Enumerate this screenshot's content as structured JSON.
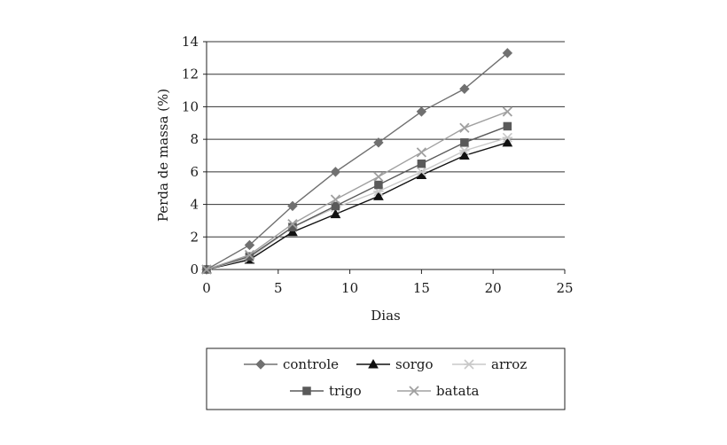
{
  "chart_data": {
    "type": "line",
    "title": "",
    "xlabel": "Dias",
    "ylabel": "Perda de massa (%)",
    "xlim": [
      0,
      25
    ],
    "ylim": [
      0,
      14
    ],
    "xticks": [
      0,
      5,
      10,
      15,
      20,
      25
    ],
    "yticks": [
      0,
      2,
      4,
      6,
      8,
      10,
      12,
      14
    ],
    "grid": "horizontal",
    "legend_position": "bottom",
    "series": [
      {
        "name": "controle",
        "marker": "diamond",
        "color": "#707070",
        "x": [
          0,
          3,
          6,
          9,
          12,
          15,
          18,
          21
        ],
        "y": [
          0,
          1.5,
          3.9,
          6.0,
          7.8,
          9.7,
          11.1,
          13.3
        ]
      },
      {
        "name": "sorgo",
        "marker": "triangle",
        "color": "#111111",
        "x": [
          0,
          3,
          6,
          9,
          12,
          15,
          18,
          21
        ],
        "y": [
          0,
          0.6,
          2.3,
          3.4,
          4.5,
          5.8,
          7.0,
          7.8
        ]
      },
      {
        "name": "arroz",
        "marker": "star",
        "color": "#c8c8c8",
        "x": [
          0,
          3,
          6,
          9,
          12,
          15,
          18,
          21
        ],
        "y": [
          0,
          0.7,
          2.6,
          3.8,
          4.8,
          6.0,
          7.3,
          8.1
        ]
      },
      {
        "name": "trigo",
        "marker": "square",
        "color": "#5a5a5a",
        "x": [
          0,
          3,
          6,
          9,
          12,
          15,
          18,
          21
        ],
        "y": [
          0,
          0.8,
          2.6,
          3.9,
          5.2,
          6.5,
          7.8,
          8.8
        ]
      },
      {
        "name": "batata",
        "marker": "x",
        "color": "#a0a0a0",
        "x": [
          0,
          3,
          6,
          9,
          12,
          15,
          18,
          21
        ],
        "y": [
          0,
          0.9,
          2.8,
          4.3,
          5.7,
          7.2,
          8.7,
          9.7
        ]
      }
    ]
  }
}
